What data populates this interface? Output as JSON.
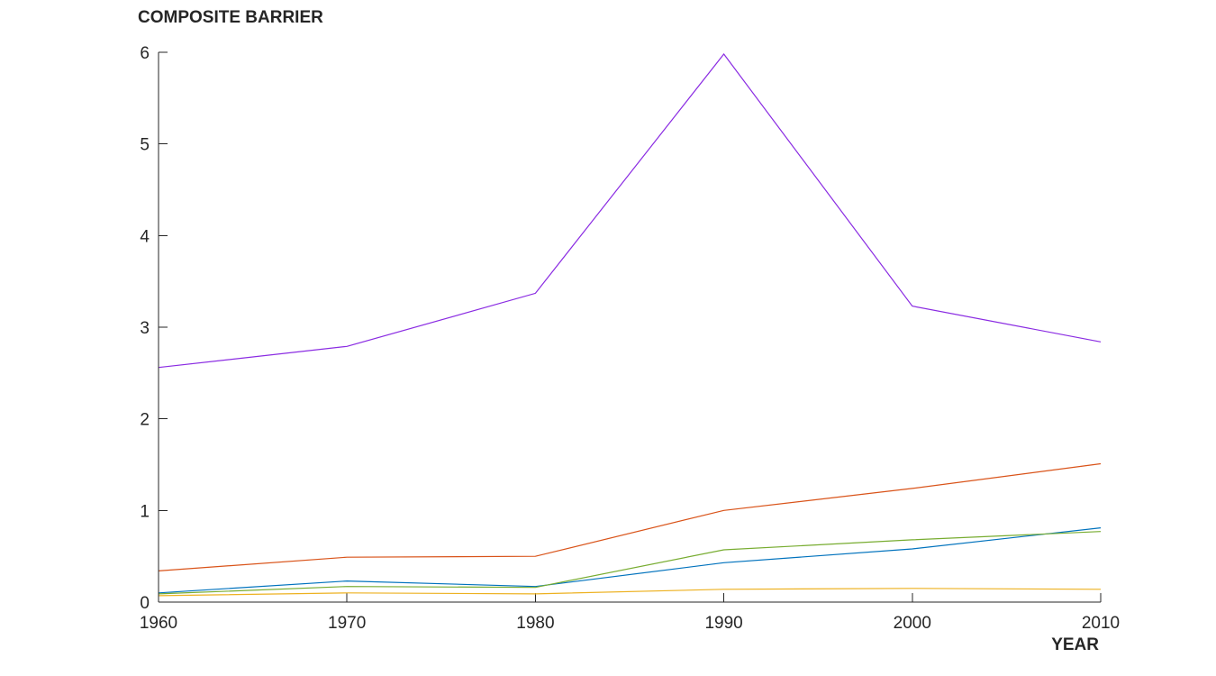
{
  "chart_data": {
    "type": "line",
    "x": [
      1960,
      1970,
      1980,
      1990,
      2000,
      2010
    ],
    "xlabel": "YEAR",
    "ylabel": "COMPOSITE BARRIER",
    "xlim": [
      1960,
      2010
    ],
    "ylim": [
      0,
      6
    ],
    "x_ticks": [
      "1960",
      "1970",
      "1980",
      "1990",
      "2000",
      "2010"
    ],
    "y_ticks": [
      "0",
      "1",
      "2",
      "3",
      "4",
      "5",
      "6"
    ],
    "grid": false,
    "legend": "none",
    "series": [
      {
        "color": "#0072bd",
        "values": [
          0.1,
          0.23,
          0.17,
          0.43,
          0.58,
          0.81
        ]
      },
      {
        "color": "#d95319",
        "values": [
          0.34,
          0.49,
          0.5,
          1.0,
          1.24,
          1.51
        ]
      },
      {
        "color": "#edb120",
        "values": [
          0.07,
          0.1,
          0.09,
          0.14,
          0.15,
          0.14
        ]
      },
      {
        "color": "#7e2f8e",
        "values": [
          2.56,
          2.79,
          3.37,
          5.98,
          3.23,
          2.84
        ]
      },
      {
        "color": "#77ac30",
        "values": [
          0.09,
          0.17,
          0.16,
          0.57,
          0.68,
          0.77
        ]
      }
    ],
    "series_colors_note_override": {
      "3": "#8a2be2"
    }
  }
}
